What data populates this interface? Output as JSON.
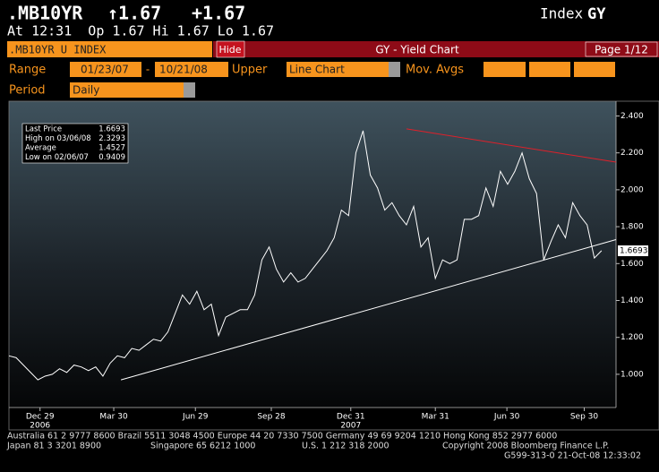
{
  "header": {
    "ticker": ".MB10YR",
    "price": "↑1.67",
    "change": "+1.67",
    "index": "Index",
    "function": "GY",
    "quote_line": "At 12:31  Op 1.67 Hi 1.67 Lo 1.67"
  },
  "toolbar": {
    "security": ".MB10YR U INDEX",
    "hide": "Hide",
    "title": "GY - Yield Chart",
    "page": "Page 1/12",
    "range_label": "Range",
    "start": "01/23/07",
    "dash": "-",
    "end": "10/21/08",
    "upper": "Upper",
    "chart_type": "Line Chart",
    "mov_avgs": "Mov. Avgs",
    "period_label": "Period",
    "period": "Daily"
  },
  "chart_data": {
    "type": "line",
    "color": "#ffffff",
    "values": [
      1.1,
      1.09,
      1.05,
      1.01,
      0.97,
      0.99,
      1.0,
      1.03,
      1.01,
      1.05,
      1.04,
      1.02,
      1.04,
      0.99,
      1.06,
      1.1,
      1.09,
      1.14,
      1.13,
      1.16,
      1.19,
      1.18,
      1.23,
      1.33,
      1.43,
      1.38,
      1.45,
      1.35,
      1.38,
      1.21,
      1.31,
      1.33,
      1.35,
      1.35,
      1.43,
      1.62,
      1.69,
      1.57,
      1.5,
      1.55,
      1.5,
      1.52,
      1.57,
      1.62,
      1.67,
      1.74,
      1.89,
      1.86,
      2.2,
      2.32,
      2.08,
      2.01,
      1.89,
      1.93,
      1.86,
      1.81,
      1.91,
      1.69,
      1.74,
      1.52,
      1.62,
      1.6,
      1.62,
      1.84,
      1.84,
      1.86,
      2.01,
      1.91,
      2.1,
      2.03,
      2.1,
      2.2,
      2.06,
      1.98,
      1.62,
      1.72,
      1.81,
      1.74,
      1.93,
      1.86,
      1.81,
      1.63,
      1.67
    ],
    "xlim": [
      0,
      84
    ],
    "ylim": [
      0.82,
      2.48
    ],
    "yticks": [
      {
        "value": 1.0,
        "label": "1.000"
      },
      {
        "value": 1.2,
        "label": "1.200"
      },
      {
        "value": 1.4,
        "label": "1.400"
      },
      {
        "value": 1.6,
        "label": "1.600"
      },
      {
        "value": 1.8,
        "label": "1.800"
      },
      {
        "value": 2.0,
        "label": "2.000"
      },
      {
        "value": 2.2,
        "label": "2.200"
      },
      {
        "value": 2.4,
        "label": "2.400"
      }
    ],
    "xticks": [
      {
        "value": 4.3,
        "label": "Dec 29"
      },
      {
        "value": 14.5,
        "label": "Mar 30"
      },
      {
        "value": 25.8,
        "label": "Jun 29"
      },
      {
        "value": 36.3,
        "label": "Sep 28"
      },
      {
        "value": 47.3,
        "label": "Dec 31"
      },
      {
        "value": 59,
        "label": "Mar 31"
      },
      {
        "value": 68.9,
        "label": "Jun 30"
      },
      {
        "value": 79.6,
        "label": "Sep 30"
      }
    ],
    "x_year_labels": [
      {
        "value": 4.3,
        "label": "2006"
      },
      {
        "value": 47.3,
        "label": "2007"
      }
    ],
    "trendlines": [
      {
        "color": "#ffffff",
        "x": [
          15.5,
          84
        ],
        "y": [
          0.97,
          1.73
        ]
      },
      {
        "color": "#e0202a",
        "x": [
          55,
          84
        ],
        "y": [
          2.33,
          2.15
        ]
      }
    ],
    "last_price_label": {
      "value": 1.6693,
      "label": "1.6693"
    },
    "stats_box": [
      {
        "label": "Last Price",
        "value": "1.6693"
      },
      {
        "label": "High on 03/06/08",
        "value": "2.3293"
      },
      {
        "label": "Average",
        "value": "1.4527"
      },
      {
        "label": "Low on 02/06/07",
        "value": "0.9409"
      }
    ]
  },
  "footer": {
    "line1": "Australia 61 2 9777 8600 Brazil 5511 3048 4500 Europe 44 20 7330 7500 Germany 49 69 9204 1210 Hong Kong 852 2977 6000",
    "line2_left": "Japan 81 3 3201 8900",
    "line2_mid1": "Singapore 65 6212 1000",
    "line2_mid2": "U.S. 1 212 318 2000",
    "line2_right": "Copyright 2008 Bloomberg Finance L.P.",
    "line3": "G599-313-0 21-Oct-08 12:33:02"
  }
}
